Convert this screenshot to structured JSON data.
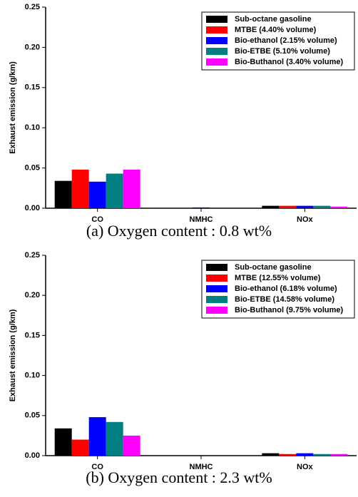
{
  "chart_data": [
    {
      "type": "bar",
      "caption": "(a) Oxygen content : 0.8 wt%",
      "y_label": "Exhaust emission (g/km)",
      "categories": [
        "CO",
        "NMHC",
        "NOx"
      ],
      "series": [
        {
          "name": "Sub-octane gasoline",
          "color": "#000000",
          "values": [
            0.034,
            0,
            0.003
          ]
        },
        {
          "name": "MTBE (4.40% volume)",
          "color": "#ff0000",
          "values": [
            0.048,
            0,
            0.003
          ]
        },
        {
          "name": "Bio-ethanol (2.15% volume)",
          "color": "#0000ff",
          "values": [
            0.033,
            0.001,
            0.003
          ]
        },
        {
          "name": "Bio-ETBE (5.10% volume)",
          "color": "#008080",
          "values": [
            0.043,
            0,
            0.003
          ]
        },
        {
          "name": "Bio-Buthanol (3.40% volume)",
          "color": "#ff00ff",
          "values": [
            0.048,
            0,
            0.002
          ]
        }
      ],
      "ylim": [
        0,
        0.25
      ],
      "yticks": [
        {
          "value": 0,
          "label": "0.00"
        },
        0.05,
        {
          "value": 0.1,
          "label": "0.10"
        },
        0.15,
        {
          "value": 0.2,
          "label": "0.20"
        },
        0.25
      ],
      "legend": "upper right"
    },
    {
      "type": "bar",
      "caption": "(b) Oxygen content : 2.3 wt%",
      "y_label": "Exhaust emission (g/km)",
      "categories": [
        "CO",
        "NMHC",
        "NOx"
      ],
      "series": [
        {
          "name": "Sub-octane gasoline",
          "color": "#000000",
          "values": [
            0.034,
            0,
            0.003
          ]
        },
        {
          "name": "MTBE (12.55% volume)",
          "color": "#ff0000",
          "values": [
            0.02,
            0,
            0.002
          ]
        },
        {
          "name": "Bio-ethanol (6.18% volume)",
          "color": "#0000ff",
          "values": [
            0.048,
            0,
            0.003
          ]
        },
        {
          "name": "Bio-ETBE (14.58% volume)",
          "color": "#008080",
          "values": [
            0.042,
            0,
            0.002
          ]
        },
        {
          "name": "Bio-Buthanol (9.75% volume)",
          "color": "#ff00ff",
          "values": [
            0.025,
            0,
            0.002
          ]
        }
      ],
      "ylim": [
        0,
        0.25
      ],
      "yticks": [
        {
          "value": 0,
          "label": "0.00"
        },
        0.05,
        {
          "value": 0.1,
          "label": "0.10"
        },
        0.15,
        {
          "value": 0.2,
          "label": "0.20"
        },
        0.25
      ],
      "legend": "upper right"
    }
  ]
}
